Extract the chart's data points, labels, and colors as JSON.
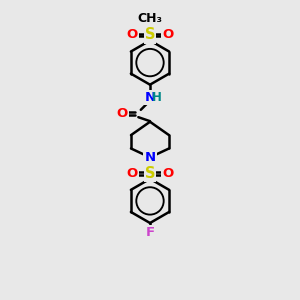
{
  "bg_color": "#e8e8e8",
  "bond_color": "#000000",
  "bond_width": 1.8,
  "atom_colors": {
    "O": "#ff0000",
    "S": "#cccc00",
    "N": "#0000ff",
    "F": "#cc44cc",
    "H": "#008888",
    "C": "#000000"
  },
  "font_size": 8.5,
  "figsize": [
    3.0,
    3.0
  ],
  "dpi": 100,
  "xlim": [
    3.5,
    6.5
  ],
  "ylim": [
    0.2,
    9.8
  ]
}
